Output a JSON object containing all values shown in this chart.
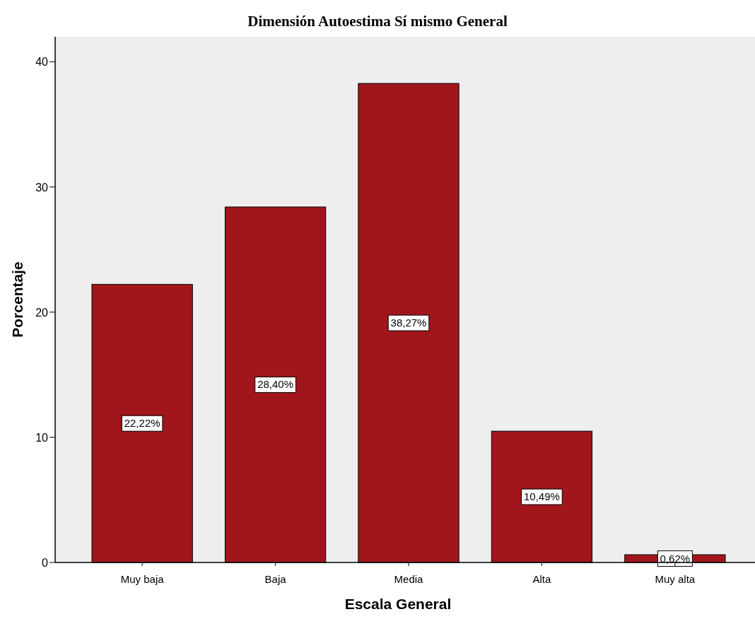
{
  "chart_data": {
    "type": "bar",
    "title": "Dimensión Autoestima Sí mismo General",
    "xlabel": "Escala General",
    "ylabel": "Porcentaje",
    "categories": [
      "Muy baja",
      "Baja",
      "Media",
      "Alta",
      "Muy alta"
    ],
    "values": [
      22.22,
      28.4,
      38.27,
      10.49,
      0.62
    ],
    "value_labels": [
      "22,22%",
      "28,40%",
      "38,27%",
      "10,49%",
      "0,62%"
    ],
    "color": "#a0161b",
    "ylim": [
      0,
      42
    ],
    "yticks": [
      0,
      10,
      20,
      30,
      40
    ],
    "grid": false
  }
}
